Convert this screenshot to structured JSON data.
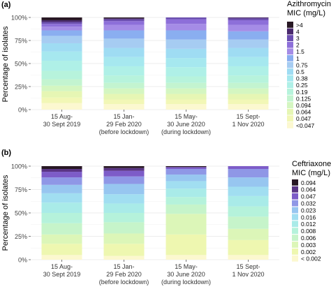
{
  "chart_data": [
    {
      "panel_label": "(a)",
      "type": "bar",
      "stacked": true,
      "ylabel": "Percentage of isolates",
      "y_ticks": [
        "0%",
        "25%",
        "50%",
        "75%",
        "100%"
      ],
      "ylim": [
        0,
        100
      ],
      "categories": [
        [
          "15 Aug-",
          "30 Sept 2019"
        ],
        [
          "15 Jan-",
          "29 Feb 2020",
          "(before lockdown)"
        ],
        [
          "15 May-",
          "30 June 2020",
          "(during lockdown)"
        ],
        [
          "15 Sept-",
          "1 Nov 2020"
        ]
      ],
      "legend": {
        "title": [
          "Azithromycin",
          "MIC (mg/L)"
        ],
        "placement": "right",
        "entries": [
          ">4",
          "4",
          "3",
          "2",
          "1.5",
          "1",
          "0.75",
          "0.5",
          "0.38",
          "0.25",
          "0.19",
          "0.125",
          "0.094",
          "0.064",
          "0.047",
          "<0.047"
        ]
      },
      "colors": [
        "#281824",
        "#4a2a6e",
        "#6c4fb1",
        "#8d6fd9",
        "#a58ce6",
        "#8aaef0",
        "#a6ccf2",
        "#9fdcf3",
        "#a6e8ef",
        "#aff0e7",
        "#b7f3dc",
        "#c3f4d0",
        "#d4f6c1",
        "#e6f6b4",
        "#f2f7b6",
        "#fcf8d0"
      ],
      "series": [
        {
          "name": "<0.047",
          "values": [
            7,
            6,
            6,
            6
          ]
        },
        {
          "name": "0.047",
          "values": [
            6,
            5,
            5,
            5
          ]
        },
        {
          "name": "0.064",
          "values": [
            7,
            6,
            6,
            6
          ]
        },
        {
          "name": "0.094",
          "values": [
            6,
            6,
            6,
            6
          ]
        },
        {
          "name": "0.125",
          "values": [
            7,
            6,
            6,
            6
          ]
        },
        {
          "name": "0.19",
          "values": [
            9,
            8,
            7,
            8
          ]
        },
        {
          "name": "0.25",
          "values": [
            11,
            10,
            10,
            10
          ]
        },
        {
          "name": "0.38",
          "values": [
            10,
            10,
            10,
            10
          ]
        },
        {
          "name": "0.5",
          "values": [
            9,
            10,
            10,
            10
          ]
        },
        {
          "name": "0.75",
          "values": [
            8,
            10,
            10,
            9
          ]
        },
        {
          "name": "1",
          "values": [
            6,
            9,
            10,
            9
          ]
        },
        {
          "name": "1.5",
          "values": [
            4,
            6,
            7,
            7
          ]
        },
        {
          "name": "2",
          "values": [
            3,
            4,
            5,
            5
          ]
        },
        {
          "name": "3",
          "values": [
            2,
            2,
            2,
            2
          ]
        },
        {
          "name": "4",
          "values": [
            2,
            1,
            0,
            1
          ]
        },
        {
          "name": ">4",
          "values": [
            3,
            1,
            0,
            0
          ]
        }
      ]
    },
    {
      "panel_label": "(b)",
      "type": "bar",
      "stacked": true,
      "ylabel": "Percentage of isolates",
      "y_ticks": [
        "0%",
        "25%",
        "50%",
        "75%",
        "100%"
      ],
      "ylim": [
        0,
        100
      ],
      "categories": [
        [
          "15 Aug-",
          "30 Sept 2019"
        ],
        [
          "15 Jan-",
          "29 Feb 2020",
          "(before lockdown)"
        ],
        [
          "15 May-",
          "30 June 2020",
          "(during lockdown)"
        ],
        [
          "15 Sept-",
          "1 Nov 2020"
        ]
      ],
      "legend": {
        "title": [
          "Ceftriaxone",
          "MIC (mg/L)"
        ],
        "placement": "right",
        "entries": [
          "0.094",
          "0.064",
          "0.047",
          "0.032",
          "0.023",
          "0.016",
          "0.012",
          "0.008",
          "0.006",
          "0.003",
          "0.002",
          "< 0.002"
        ]
      },
      "colors": [
        "#281824",
        "#5a3585",
        "#7d5cc8",
        "#8f97e6",
        "#97c6f0",
        "#a1def1",
        "#a9ebe8",
        "#b5f2db",
        "#c6f4ca",
        "#dcf6b8",
        "#eef7b0",
        "#fcf8cf"
      ],
      "series": [
        {
          "name": "< 0.002",
          "values": [
            5,
            4,
            5,
            5
          ]
        },
        {
          "name": "0.002",
          "values": [
            12,
            13,
            22,
            16
          ]
        },
        {
          "name": "0.003",
          "values": [
            10,
            11,
            22,
            12
          ]
        },
        {
          "name": "0.006",
          "values": [
            12,
            12,
            10,
            13
          ]
        },
        {
          "name": "0.008",
          "values": [
            11,
            10,
            8,
            11
          ]
        },
        {
          "name": "0.012",
          "values": [
            11,
            10,
            9,
            11
          ]
        },
        {
          "name": "0.016",
          "values": [
            10,
            10,
            8,
            10
          ]
        },
        {
          "name": "0.023",
          "values": [
            9,
            11,
            7,
            10
          ]
        },
        {
          "name": "0.032",
          "values": [
            8,
            8,
            6,
            9
          ]
        },
        {
          "name": "0.047",
          "values": [
            6,
            6,
            2,
            3
          ]
        },
        {
          "name": "0.064",
          "values": [
            3,
            3,
            0,
            0
          ]
        },
        {
          "name": "0.094",
          "values": [
            3,
            2,
            1,
            0
          ]
        }
      ]
    }
  ]
}
